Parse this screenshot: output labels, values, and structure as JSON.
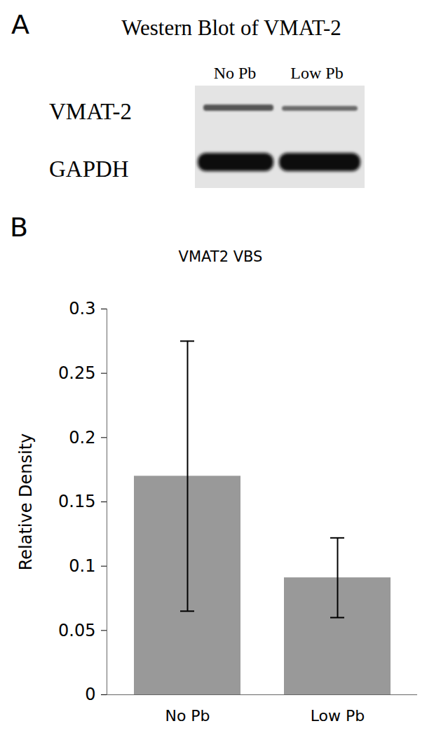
{
  "blot": {
    "panel_label": "A",
    "title": "Western Blot of VMAT-2",
    "lanes": [
      "No Pb",
      "Low Pb"
    ],
    "rows": [
      "VMAT-2",
      "GAPDH"
    ]
  },
  "chart_data": {
    "panel_label": "B",
    "type": "bar",
    "title": "VMAT2 VBS",
    "categories": [
      "No Pb",
      "Low Pb"
    ],
    "values": [
      0.17,
      0.091
    ],
    "error": [
      0.105,
      0.031
    ],
    "color": "#999999",
    "ylabel": "Relative Density",
    "ylim": [
      0,
      0.3
    ],
    "yticks": [
      0,
      0.05,
      0.1,
      0.15,
      0.2,
      0.25,
      0.3
    ],
    "grid": false
  }
}
